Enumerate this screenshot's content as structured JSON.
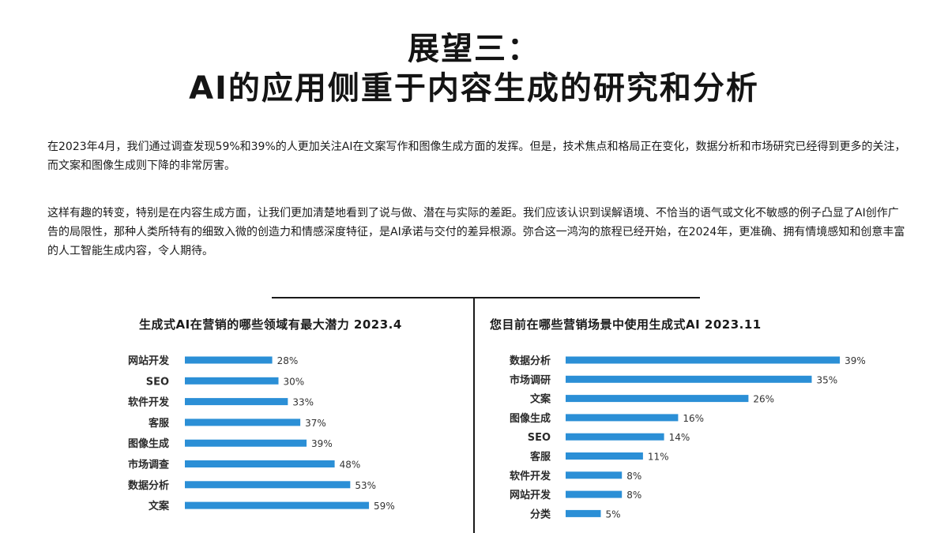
{
  "header": {
    "title_line1": "展望三：",
    "title_line2": "AI的应用侧重于内容生成的研究和分析"
  },
  "body": {
    "paragraph1": "在2023年4月，我们通过调查发现59%和39%的人更加关注AI在文案写作和图像生成方面的发挥。但是，技术焦点和格局正在变化，数据分析和市场研究已经得到更多的关注，而文案和图像生成则下降的非常厉害。",
    "paragraph2": "这样有趣的转变，特别是在内容生成方面，让我们更加清楚地看到了说与做、潜在与实际的差距。我们应该认识到误解语境、不恰当的语气或文化不敏感的例子凸显了AI创作广告的局限性，那种人类所特有的细致入微的创造力和情感深度特征，是AI承诺与交付的差异根源。弥合这一鸿沟的旅程已经开始，在2024年，更准确、拥有情境感知和创意丰富的人工智能生成内容，令人期待。"
  },
  "colors": {
    "bar": "#2b8fd6",
    "text": "#1a1a1a"
  },
  "chart_data": [
    {
      "type": "bar",
      "orientation": "horizontal",
      "title": "生成式AI在营销的哪些领域有最大潜力 2023.4",
      "categories": [
        "网站开发",
        "SEO",
        "软件开发",
        "客服",
        "图像生成",
        "市场调查",
        "数据分析",
        "文案"
      ],
      "values": [
        28,
        30,
        33,
        37,
        39,
        48,
        53,
        59
      ],
      "value_labels": [
        "28%",
        "30%",
        "33%",
        "37%",
        "39%",
        "48%",
        "53%",
        "59%"
      ],
      "unit": "%",
      "xlim": [
        0,
        60
      ],
      "grid": false
    },
    {
      "type": "bar",
      "orientation": "horizontal",
      "title": "您目前在哪些营销场景中使用生成式AI 2023.11",
      "categories": [
        "数据分析",
        "市场调研",
        "文案",
        "图像生成",
        "SEO",
        "客服",
        "软件开发",
        "网站开发",
        "分类"
      ],
      "values": [
        39,
        35,
        26,
        16,
        14,
        11,
        8,
        8,
        5
      ],
      "value_labels": [
        "39%",
        "35%",
        "26%",
        "16%",
        "14%",
        "11%",
        "8%",
        "8%",
        "5%"
      ],
      "unit": "%",
      "xlim": [
        0,
        40
      ],
      "grid": false
    }
  ]
}
